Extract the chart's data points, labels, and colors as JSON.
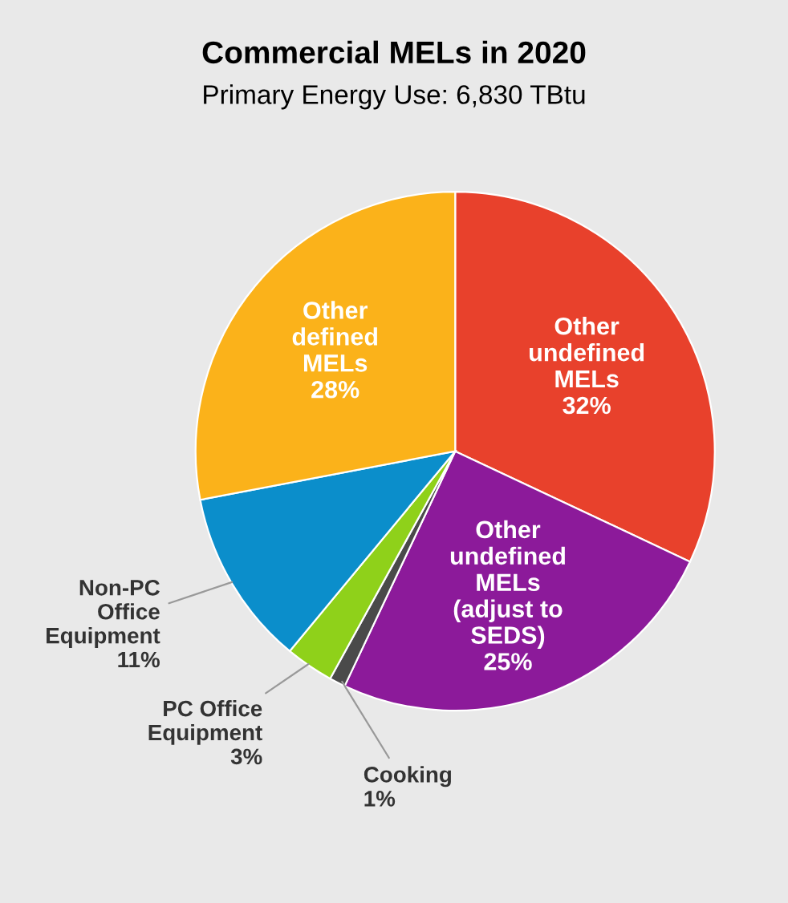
{
  "chart_data": {
    "type": "pie",
    "title": "Commercial MELs in 2020",
    "subtitle": "Primary Energy Use: 6,830 TBtu",
    "categories": [
      "Other\nundefined\nMELs",
      "Other\nundefined\nMELs\n(adjust to\nSEDS)",
      "Cooking",
      "PC Office\nEquipment",
      "Non-PC\nOffice\nEquipment",
      "Other\ndefined\nMELs"
    ],
    "values": [
      32,
      25,
      1,
      3,
      11,
      28
    ],
    "value_labels": [
      "32%",
      "25%",
      "1%",
      "3%",
      "11%",
      "28%"
    ],
    "colors": [
      "#e8412c",
      "#8c1a9a",
      "#4a4a4a",
      "#8fd11a",
      "#0b8ecb",
      "#fbb21a"
    ],
    "legend": false
  }
}
